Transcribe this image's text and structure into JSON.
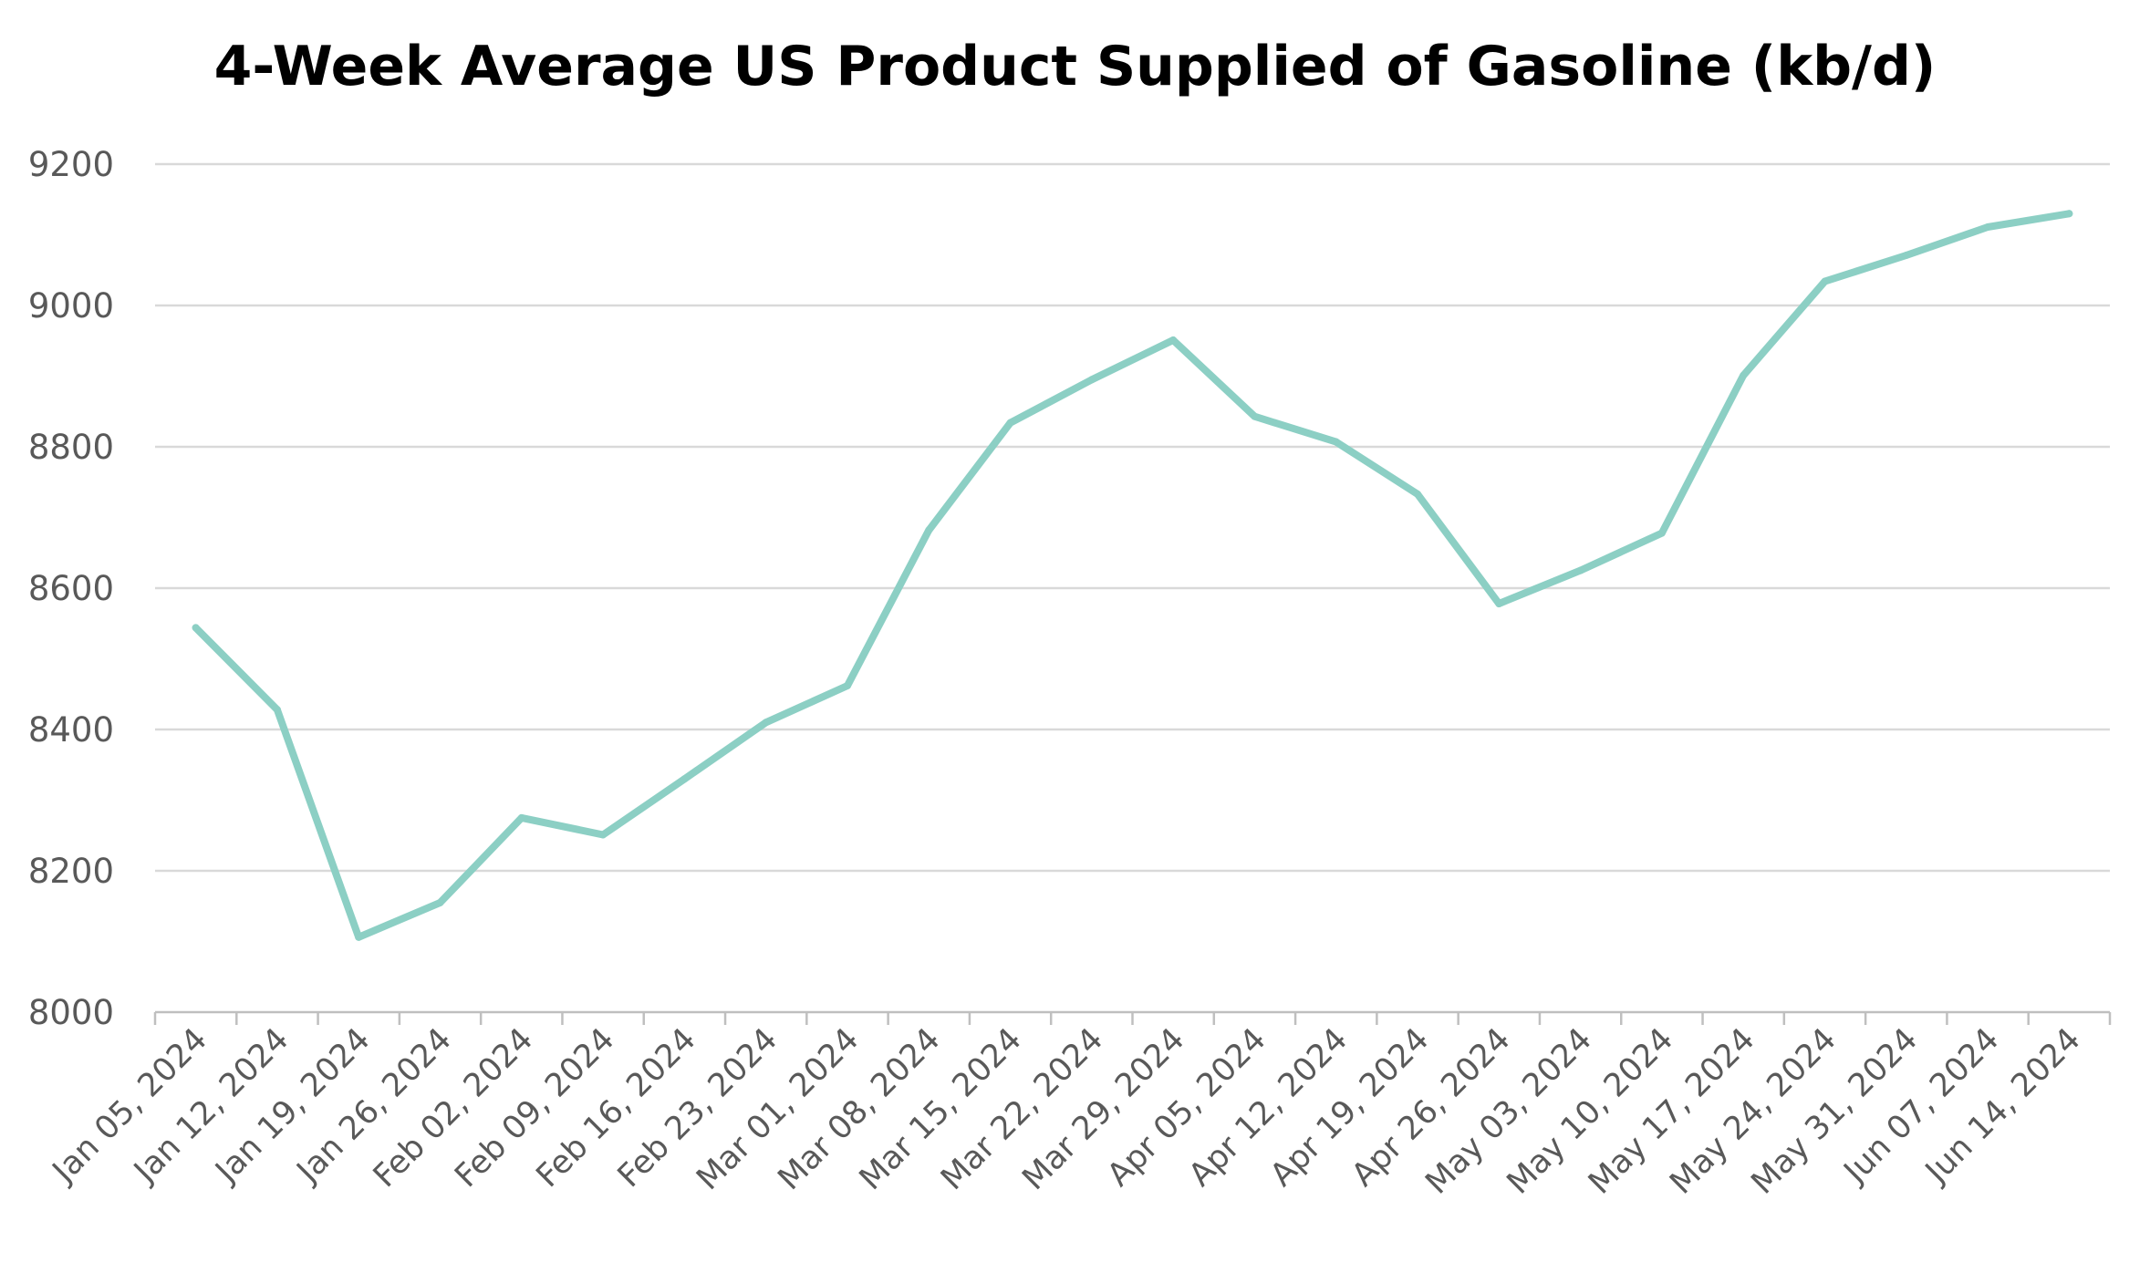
{
  "chart_data": {
    "type": "line",
    "title": "4-Week Average US Product Supplied of Gasoline (kb/d)",
    "xlabel": "",
    "ylabel": "",
    "ylim": [
      8000,
      9200
    ],
    "yticks": [
      "8000",
      "8200",
      "8400",
      "8600",
      "8800",
      "9000",
      "9200"
    ],
    "grid": true,
    "legend": "none",
    "categories": [
      "Jan 05, 2024",
      "Jan 12, 2024",
      "Jan 19, 2024",
      "Jan 26, 2024",
      "Feb 02, 2024",
      "Feb 09, 2024",
      "Feb 16, 2024",
      "Feb 23, 2024",
      "Mar 01, 2024",
      "Mar 08, 2024",
      "Mar 15, 2024",
      "Mar 22, 2024",
      "Mar 29, 2024",
      "Apr 05, 2024",
      "Apr 12, 2024",
      "Apr 19, 2024",
      "Apr 26, 2024",
      "May 03, 2024",
      "May 10, 2024",
      "May 17, 2024",
      "May 24, 2024",
      "May 31, 2024",
      "Jun 07, 2024",
      "Jun 14, 2024"
    ],
    "series": [
      {
        "color": "#8ccfc4",
        "values": [
          8544,
          8428,
          8106,
          8155,
          8275,
          8251,
          8330,
          8410,
          8462,
          8682,
          8834,
          8895,
          8951,
          8843,
          8807,
          8733,
          8578,
          8625,
          8678,
          8901,
          9034,
          9071,
          9111,
          9130
        ]
      }
    ],
    "colors": {
      "grid": "#d9d9d9",
      "axis": "#bfbfbf",
      "tick_text": "#595959",
      "title": "#000000"
    }
  }
}
